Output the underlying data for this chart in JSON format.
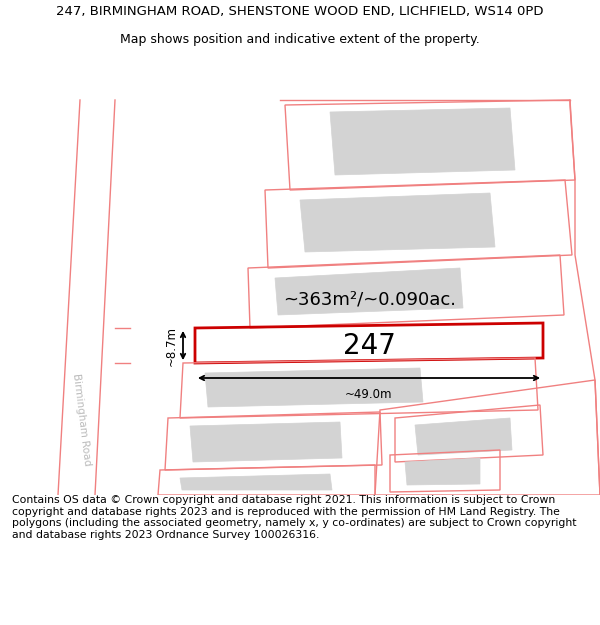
{
  "title_line1": "247, BIRMINGHAM ROAD, SHENSTONE WOOD END, LICHFIELD, WS14 0PD",
  "title_line2": "Map shows position and indicative extent of the property.",
  "footer_text": "Contains OS data © Crown copyright and database right 2021. This information is subject to Crown copyright and database rights 2023 and is reproduced with the permission of HM Land Registry. The polygons (including the associated geometry, namely x, y co-ordinates) are subject to Crown copyright and database rights 2023 Ordnance Survey 100026316.",
  "area_label": "~363m²/~0.090ac.",
  "width_label": "~49.0m",
  "height_label": "~8.7m",
  "plot_number": "247",
  "road_label": "Birmingham Road",
  "map_bg": "#ffffff",
  "plot_color": "#cc0000",
  "neighbor_color": "#f08080",
  "building_fill": "#d3d3d3",
  "title_fontsize": 9.5,
  "subtitle_fontsize": 9,
  "footer_fontsize": 7.8,
  "area_fontsize": 13,
  "number_fontsize": 20,
  "meas_fontsize": 8.5
}
